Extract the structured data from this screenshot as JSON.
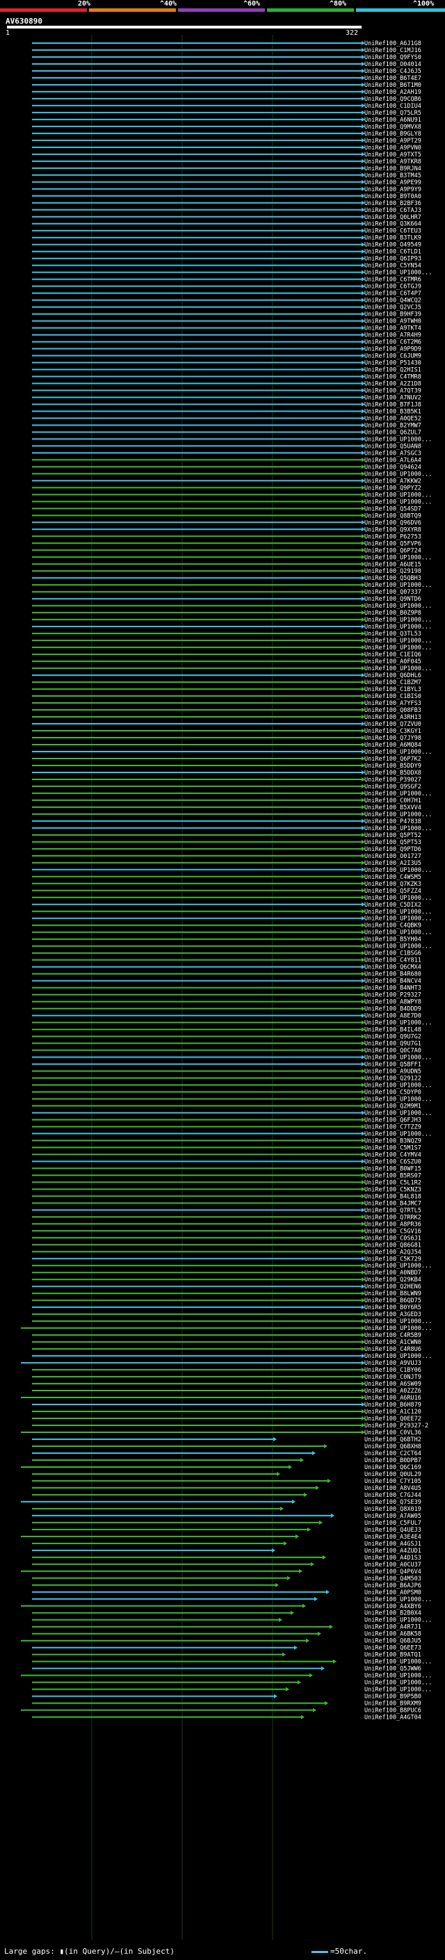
{
  "legend": {
    "ticks": [
      "20%",
      "^40%",
      "^60%",
      "^80%",
      "^100%"
    ],
    "colors": [
      "#e0202a",
      "#e07b1a",
      "#8e3fb8",
      "#2cae3a",
      "#2fc1d4"
    ]
  },
  "query": {
    "title": "AV630890",
    "start": "1",
    "end": "322"
  },
  "hits": [
    "UniRef100_A6J1G8",
    "UniRef100_C1MJ16",
    "UniRef100_Q9FYS0",
    "UniRef100_O04014",
    "UniRef100_C4J6J5",
    "UniRef100_B6T4E7",
    "UniRef100_B6T1M0",
    "UniRef100_A2AH19",
    "UniRef100_Q9CQB6",
    "UniRef100_C1DIU4",
    "UniRef100_Q75LR5",
    "UniRef100_A6NU91",
    "UniRef100_Q9MVX8",
    "UniRef100_B9GLY8",
    "UniRef100_A9PT29",
    "UniRef100_A9PVN0",
    "UniRef100_A9TXT5",
    "UniRef100_A9TKR8",
    "UniRef100_B9RJN4",
    "UniRef100_B3TM45",
    "UniRef100_A9PE99",
    "UniRef100_A9P9Y9",
    "UniRef100_B9T0A0",
    "UniRef100_B2BF36",
    "UniRef100_C6TAJ3",
    "UniRef100_Q0LHR7",
    "UniRef100_Q3K664",
    "UniRef100_C6TEU3",
    "UniRef100_B3TLK9",
    "UniRef100_O49549",
    "UniRef100_C6TLD1",
    "UniRef100_Q6IP93",
    "UniRef100_C5YN54",
    "UniRef100_UP1000...",
    "UniRef100_C6TMR6",
    "UniRef100_C6TGJ9",
    "UniRef100_C6T4P7",
    "UniRef100_Q4WCQ2",
    "UniRef100_Q2VCJ5",
    "UniRef100_B9HF39",
    "UniRef100_A9TWH0",
    "UniRef100_A9TKT4",
    "UniRef100_A7R4H9",
    "UniRef100_C6T2M6",
    "UniRef100_A9P9D9",
    "UniRef100_C6JUM9",
    "UniRef100_P51430",
    "UniRef100_Q2HIS1",
    "UniRef100_C4TMR8",
    "UniRef100_A2Z1D8",
    "UniRef100_A7QT39",
    "UniRef100_A7NUV2",
    "UniRef100_B7F1J8",
    "UniRef100_B3B5K1",
    "UniRef100_A0QE52",
    "UniRef100_B2YMW7",
    "UniRef100_Q6ZUL7",
    "UniRef100_UP1000...",
    "UniRef100_Q5UAN8",
    "UniRef100_A7SGC3",
    "UniRef100_A7L6A4",
    "UniRef100_Q94624",
    "UniRef100_UP1000...",
    "UniRef100_A7KKW2",
    "UniRef100_Q9PYZ2",
    "UniRef100_UP1000...",
    "UniRef100_UP1000...",
    "UniRef100_Q54SD7",
    "UniRef100_Q8BTQ9",
    "UniRef100_Q96DV6",
    "UniRef100_Q9XYR8",
    "UniRef100_P62753",
    "UniRef100_Q5FVP6",
    "UniRef100_Q6P724",
    "UniRef100_UP1000...",
    "UniRef100_A6UE15",
    "UniRef100_Q29198",
    "UniRef100_Q5QBH3",
    "UniRef100_UP1000...",
    "UniRef100_Q07337",
    "UniRef100_Q9NTD6",
    "UniRef100_UP1000...",
    "UniRef100_B0Z9P8",
    "UniRef100_UP1000...",
    "UniRef100_UP1000...",
    "UniRef100_Q3TL53",
    "UniRef100_UP1000...",
    "UniRef100_UP1000...",
    "UniRef100_C1EIQ6",
    "UniRef100_A0F045",
    "UniRef100_UP1000...",
    "UniRef100_Q6DHL6",
    "UniRef100_C1BZM7",
    "UniRef100_C1BYL3",
    "UniRef100_C1BIS0",
    "UniRef100_A7YFS3",
    "UniRef100_Q08FB3",
    "UniRef100_A3RH13",
    "UniRef100_Q7ZVU0",
    "UniRef100_C3KGY1",
    "UniRef100_Q7JY98",
    "UniRef100_A6MQ84",
    "UniRef100_UP1000...",
    "UniRef100_Q6P7K2",
    "UniRef100_B5DDY9",
    "UniRef100_B5DDX8",
    "UniRef100_P39027",
    "UniRef100_Q9SGF2",
    "UniRef100_UP1000...",
    "UniRef100_C0H7H1",
    "UniRef100_B5XVV4",
    "UniRef100_UP1000...",
    "UniRef100_P47838",
    "UniRef100_UP1000...",
    "UniRef100_Q5PT52",
    "UniRef100_Q5PT53",
    "UniRef100_Q9PTD6",
    "UniRef100_O01727",
    "UniRef100_A2I3U5",
    "UniRef100_UP1000...",
    "UniRef100_C4WSM5",
    "UniRef100_Q7KZK3",
    "UniRef100_Q5FZZ4",
    "UniRef100_UP1000...",
    "UniRef100_C5DIX2",
    "UniRef100_UP1000...",
    "UniRef100_UP1000...",
    "UniRef100_C4QBK9",
    "UniRef100_UP1000...",
    "UniRef100_B5YH04",
    "UniRef100_UP1000...",
    "UniRef100_C1BSG6",
    "UniRef100_C4Y811",
    "UniRef100_Q6CMX4",
    "UniRef100_B4R680",
    "UniRef100_B4NCV4",
    "UniRef100_B4NHT3",
    "UniRef100_P29327",
    "UniRef100_A8WPY8",
    "UniRef100_B4DDD9",
    "UniRef100_A8E7D0",
    "UniRef100_UP1000...",
    "UniRef100_B4IL48",
    "UniRef100_Q9U7G2",
    "UniRef100_Q9U7G1",
    "UniRef100_Q0C7A0",
    "UniRef100_UP1000...",
    "UniRef100_Q5BFF1",
    "UniRef100_A9UDN5",
    "UniRef100_Q29122",
    "UniRef100_UP1000...",
    "UniRef100_C5DYP0",
    "UniRef100_UP1000...",
    "UniRef100_Q2M9M1",
    "UniRef100_UP1000...",
    "UniRef100_Q6FJH3",
    "UniRef100_C7TZZ9",
    "UniRef100_UP1000...",
    "UniRef100_B3NQZ9",
    "UniRef100_C5M1S7",
    "UniRef100_C4YMV4",
    "UniRef100_C6SZU0",
    "UniRef100_B0WF15",
    "UniRef100_B5RS07",
    "UniRef100_C5L1R2",
    "UniRef100_C5KNZ3",
    "UniRef100_B4L818",
    "UniRef100_B4JMC7",
    "UniRef100_Q7RTL5",
    "UniRef100_Q7RRK2",
    "UniRef100_A8PR36",
    "UniRef100_C5GV16",
    "UniRef100_C0S6J1",
    "UniRef100_Q86G81",
    "UniRef100_A2QJ54",
    "UniRef100_C5K729",
    "UniRef100_UP1000...",
    "UniRef100_A0NBD7",
    "UniRef100_Q29KB4",
    "UniRef100_Q2HEN6",
    "UniRef100_B8LWN9",
    "UniRef100_B6QD75",
    "UniRef100_B0Y6R5",
    "UniRef100_A3GED3",
    "UniRef100_UP1000...",
    "UniRef100_UP1000...",
    "UniRef100_C4R5B9",
    "UniRef100_A1CWN0",
    "UniRef100_C4R8U6",
    "UniRef100_UP1000...",
    "UniRef100_A9VUJ3",
    "UniRef100_C1BY06",
    "UniRef100_C0NJT9",
    "UniRef100_A6SW09",
    "UniRef100_A0ZZZ6",
    "UniRef100_A6RU16",
    "UniRef100_B6H879",
    "UniRef100_A1C120",
    "UniRef100_Q0EE72",
    "UniRef100_P29327-2",
    "UniRef100_C0VL36",
    "UniRef100_Q6BTH2",
    "UniRef100_Q6BXH8",
    "UniRef100_C2CT64",
    "UniRef100_B0DPB7",
    "UniRef100_Q6C169",
    "UniRef100_Q0UL29",
    "UniRef100_C7Y105",
    "UniRef100_A8V4U5",
    "UniRef100_C7GJ44",
    "UniRef100_Q7SE39",
    "UniRef100_Q8X019",
    "UniRef100_A7AW05",
    "UniRef100_C5FUL7",
    "UniRef100_Q4UEJ3",
    "UniRef100_A3E4E4",
    "UniRef100_A4GSJ1",
    "UniRef100_A4ZUD1",
    "UniRef100_A4D1S3",
    "UniRef100_A0CU37",
    "UniRef100_Q4P6V4",
    "UniRef100_Q4M503",
    "UniRef100_B6AJP6",
    "UniRef100_A0PSM0",
    "UniRef100_UP1000...",
    "UniRef100_A4XBY6",
    "UniRef100_B2B0X4",
    "UniRef100_UP1000...",
    "UniRef100_A4R7J1",
    "UniRef100_A6BK58",
    "UniRef100_Q6BJU5",
    "UniRef100_Q6EE73",
    "UniRef100_B9ATQ1",
    "UniRef100_UP1000...",
    "UniRef100_Q5JWW6",
    "UniRef100_UP1000...",
    "UniRef100_UP1000...",
    "UniRef100_UP1000...",
    "UniRef100_B9P5B0",
    "UniRef100_B9RXM9",
    "UniRef100_B8PUC6",
    "UniRef100_A4GT04"
  ],
  "footer": {
    "text": "Large gaps: ▮(in Query)/—(in Subject)",
    "scale": "=50char."
  }
}
